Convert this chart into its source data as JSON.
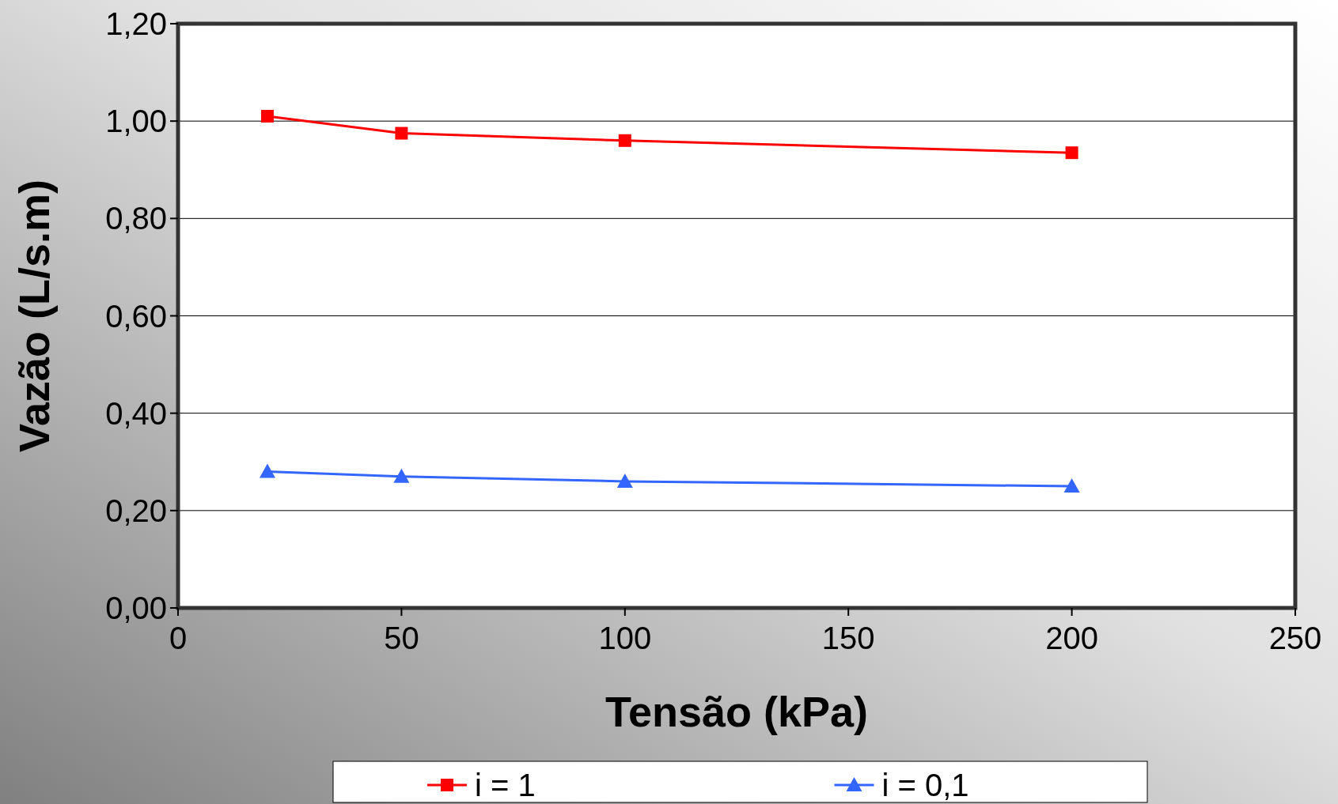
{
  "chart_data": {
    "type": "line",
    "xlabel": "Tensão (kPa)",
    "ylabel": "Vazão (L/s.m)",
    "x": [
      20,
      50,
      100,
      200
    ],
    "series": [
      {
        "name": "i = 1",
        "color": "#ff0000",
        "values": [
          1.01,
          0.975,
          0.96,
          0.935
        ],
        "marker": "square"
      },
      {
        "name": "i = 0,1",
        "color": "#3366ff",
        "values": [
          0.28,
          0.27,
          0.26,
          0.25
        ],
        "marker": "triangle"
      }
    ],
    "xlim": [
      0,
      250
    ],
    "xticks": [
      0,
      50,
      100,
      150,
      200,
      250
    ],
    "ylim": [
      0,
      1.2
    ],
    "yticks": [
      {
        "value": 0,
        "label": "0,00"
      },
      {
        "value": 0.2,
        "label": "0,20"
      },
      {
        "value": 0.4,
        "label": "0,40"
      },
      {
        "value": 0.6,
        "label": "0,60"
      },
      {
        "value": 0.8,
        "label": "0,80"
      },
      {
        "value": 1,
        "label": "1,00"
      },
      {
        "value": 1.2,
        "label": "1,20"
      }
    ],
    "grid": "y",
    "legend": "bottom"
  }
}
